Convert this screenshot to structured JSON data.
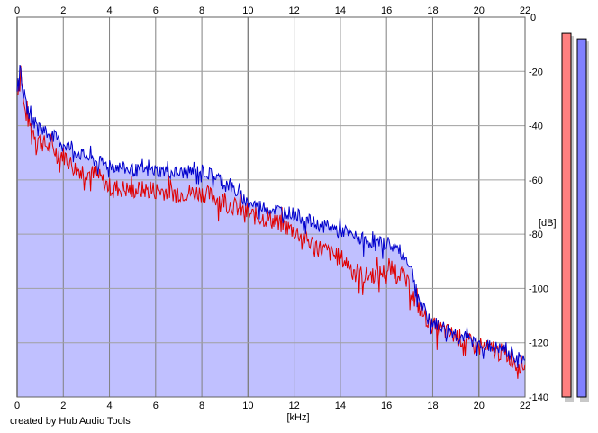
{
  "credit": "created by Hub Audio Tools",
  "chart_data": {
    "type": "line",
    "xlabel": "[kHz]",
    "ylabel": "[dB]",
    "xlim": [
      0,
      22
    ],
    "ylim": [
      -140,
      0
    ],
    "x_ticks": [
      0,
      2,
      4,
      6,
      8,
      10,
      12,
      14,
      16,
      18,
      20,
      22
    ],
    "y_ticks": [
      -20,
      -40,
      -60,
      -80,
      -100,
      -120,
      -140
    ],
    "y_tick_labels_top": [
      "0"
    ],
    "grid": true,
    "series": [
      {
        "color": "#e00000",
        "x": [
          0,
          0.15,
          0.3,
          0.6,
          1,
          1.5,
          2,
          2.5,
          3,
          3.5,
          4,
          5,
          6,
          7,
          8,
          9,
          10,
          11,
          12,
          13,
          14,
          15,
          16,
          16.5,
          17,
          17.5,
          18,
          18.5,
          19,
          20,
          21,
          22
        ],
        "y": [
          -28,
          -17,
          -33,
          -40,
          -45,
          -48,
          -50,
          -55,
          -56,
          -58,
          -62,
          -63,
          -63,
          -64,
          -64,
          -67,
          -72,
          -74,
          -78,
          -84,
          -88,
          -95,
          -93,
          -92,
          -99,
          -108,
          -113,
          -115,
          -117,
          -121,
          -123,
          -128
        ]
      },
      {
        "color": "#0000cc",
        "x": [
          0,
          0.15,
          0.3,
          0.6,
          1,
          1.5,
          2,
          2.5,
          3,
          3.5,
          4,
          5,
          6,
          7,
          8,
          9,
          10,
          11,
          12,
          13,
          14,
          15,
          16,
          16.5,
          17,
          17.5,
          18,
          18.5,
          19,
          20,
          21,
          22
        ],
        "y": [
          -25,
          -18,
          -30,
          -37,
          -40,
          -43,
          -46,
          -49,
          -51,
          -53,
          -54,
          -56,
          -56,
          -57,
          -56,
          -60,
          -68,
          -70,
          -72,
          -76,
          -78,
          -82,
          -83,
          -85,
          -90,
          -106,
          -112,
          -114,
          -116,
          -120,
          -122,
          -126
        ]
      }
    ],
    "area_fill": "#c0c0ff",
    "level_meters": [
      {
        "color": "#ff8080",
        "level_db": -6
      },
      {
        "color": "#8080ff",
        "level_db": -8
      }
    ]
  }
}
